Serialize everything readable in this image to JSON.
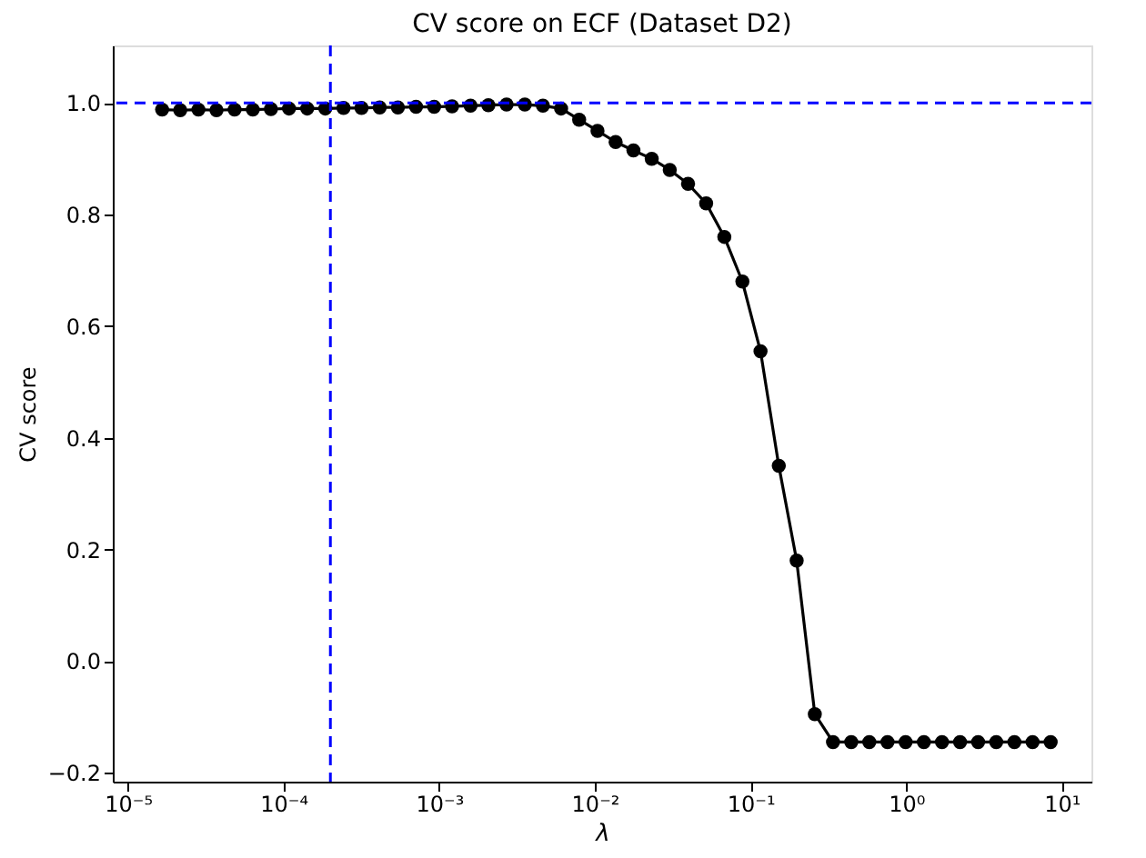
{
  "chart_data": {
    "type": "line",
    "title": "CV score on ECF (Dataset D2)",
    "xlabel": "λ",
    "ylabel": "CV score",
    "log": "x",
    "marker": "circle",
    "line_style": "solid",
    "grid": false,
    "x": [
      1.66e-05,
      2.17e-05,
      2.84e-05,
      3.71e-05,
      4.85e-05,
      6.35e-05,
      8.3e-05,
      0.0001085,
      0.000142,
      0.0001855,
      0.000243,
      0.000317,
      0.000415,
      0.000543,
      0.00071,
      0.000928,
      0.00121,
      0.00159,
      0.00207,
      0.00271,
      0.00355,
      0.00464,
      0.00607,
      0.00793,
      0.0104,
      0.0136,
      0.0177,
      0.0232,
      0.0303,
      0.0397,
      0.0519,
      0.0679,
      0.0887,
      0.116,
      0.152,
      0.198,
      0.259,
      0.339,
      0.444,
      0.58,
      0.759,
      0.992,
      1.3,
      1.7,
      2.22,
      2.9,
      3.79,
      4.96,
      6.49,
      8.48
    ],
    "series": [
      {
        "color": "#000000",
        "values": [
          0.988,
          0.987,
          0.988,
          0.987,
          0.988,
          0.988,
          0.989,
          0.99,
          0.99,
          0.99,
          0.991,
          0.991,
          0.992,
          0.992,
          0.993,
          0.993,
          0.994,
          0.995,
          0.996,
          0.997,
          0.997,
          0.995,
          0.99,
          0.97,
          0.95,
          0.93,
          0.915,
          0.9,
          0.88,
          0.855,
          0.82,
          0.76,
          0.68,
          0.555,
          0.35,
          0.18,
          -0.095,
          -0.145,
          -0.145,
          -0.145,
          -0.145,
          -0.145,
          -0.145,
          -0.145,
          -0.145,
          -0.145,
          -0.145,
          -0.145,
          -0.145,
          -0.145
        ]
      }
    ],
    "xlim": [
      8e-06,
      15.5
    ],
    "ylim": [
      -0.216,
      1.103
    ],
    "xticks": [
      {
        "value": 1e-05,
        "label": "10⁻⁵"
      },
      {
        "value": 0.0001,
        "label": "10⁻⁴"
      },
      {
        "value": 0.001,
        "label": "10⁻³"
      },
      {
        "value": 0.01,
        "label": "10⁻²"
      },
      {
        "value": 0.1,
        "label": "10⁻¹"
      },
      {
        "value": 1,
        "label": "10⁰"
      },
      {
        "value": 10,
        "label": "10¹"
      }
    ],
    "yticks": [
      -0.2,
      {
        "value": 0,
        "label": "0.0"
      },
      0.2,
      0.4,
      0.6,
      0.8,
      {
        "value": 1,
        "label": "1.0"
      }
    ],
    "ref_lines": [
      {
        "axis": "x",
        "value": 0.0002,
        "color": "#0000ff",
        "line_style": "dashed"
      },
      {
        "axis": "y",
        "value": 1.0,
        "color": "#0000ff",
        "line_style": "dashed"
      }
    ]
  }
}
